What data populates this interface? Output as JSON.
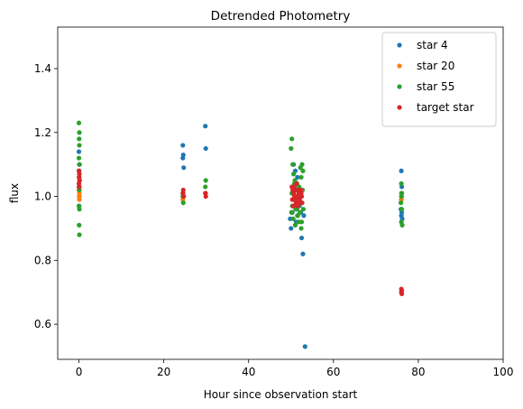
{
  "chart_data": {
    "type": "scatter",
    "title": "Detrended Photometry",
    "xlabel": "Hour since observation start",
    "ylabel": "flux",
    "xlim": [
      -5,
      100
    ],
    "ylim": [
      0.49,
      1.53
    ],
    "xticks": [
      0,
      20,
      40,
      60,
      80,
      100
    ],
    "yticks": [
      0.6,
      0.8,
      1.0,
      1.2,
      1.4
    ],
    "grid": false,
    "legend_position": "top-right",
    "series": [
      {
        "name": "star 4",
        "color": "#1f77b4",
        "points": [
          [
            0,
            1.14
          ],
          [
            0.1,
            1.1
          ],
          [
            0.05,
            1.08
          ],
          [
            0.15,
            1.05
          ],
          [
            0,
            1.03
          ],
          [
            0.1,
            1.0
          ],
          [
            0.05,
            0.97
          ],
          [
            24.5,
            1.16
          ],
          [
            24.6,
            1.13
          ],
          [
            24.5,
            1.12
          ],
          [
            24.7,
            1.09
          ],
          [
            29.8,
            1.22
          ],
          [
            29.9,
            1.15
          ],
          [
            49.8,
            0.93
          ],
          [
            50.0,
            0.9
          ],
          [
            50.3,
            0.95
          ],
          [
            51.0,
            1.08
          ],
          [
            51.5,
            1.06
          ],
          [
            51.8,
            1.03
          ],
          [
            52.0,
            0.97
          ],
          [
            52.3,
            0.95
          ],
          [
            52.5,
            0.87
          ],
          [
            52.8,
            0.82
          ],
          [
            53.0,
            0.94
          ],
          [
            50.6,
            1.1
          ],
          [
            51.2,
            0.92
          ],
          [
            53.3,
            0.53
          ],
          [
            76.0,
            1.08
          ],
          [
            76.1,
            1.03
          ],
          [
            76.0,
            0.99
          ],
          [
            75.9,
            0.96
          ],
          [
            76.1,
            0.95
          ],
          [
            76.0,
            0.94
          ],
          [
            76.2,
            0.93
          ]
        ]
      },
      {
        "name": "star 20",
        "color": "#ff7f0e",
        "points": [
          [
            0,
            1.02
          ],
          [
            0.1,
            1.01
          ],
          [
            0.05,
            1.0
          ],
          [
            0.1,
            0.99
          ],
          [
            24.6,
            1.01
          ],
          [
            24.5,
            0.99
          ],
          [
            29.9,
            1.01
          ],
          [
            50.5,
            1.01
          ],
          [
            51.0,
            1.0
          ],
          [
            51.5,
            0.99
          ],
          [
            52.0,
            1.02
          ],
          [
            76.0,
            1.01
          ],
          [
            76.1,
            1.0
          ],
          [
            76.0,
            0.99
          ]
        ]
      },
      {
        "name": "star 55",
        "color": "#2ca02c",
        "points": [
          [
            0,
            1.23
          ],
          [
            0.1,
            1.2
          ],
          [
            0.05,
            1.18
          ],
          [
            0.1,
            1.16
          ],
          [
            0,
            1.12
          ],
          [
            0.15,
            1.1
          ],
          [
            0.05,
            1.06
          ],
          [
            0.1,
            1.02
          ],
          [
            0,
            0.97
          ],
          [
            0.1,
            0.96
          ],
          [
            0.05,
            0.91
          ],
          [
            0.1,
            0.88
          ],
          [
            24.5,
            1.0
          ],
          [
            24.6,
            0.98
          ],
          [
            29.9,
            1.05
          ],
          [
            29.8,
            1.03
          ],
          [
            50.0,
            1.15
          ],
          [
            50.2,
            1.18
          ],
          [
            50.4,
            1.1
          ],
          [
            50.6,
            1.07
          ],
          [
            50.8,
            1.04
          ],
          [
            51.0,
            1.02
          ],
          [
            51.2,
            0.98
          ],
          [
            51.4,
            0.96
          ],
          [
            51.6,
            0.94
          ],
          [
            51.8,
            0.92
          ],
          [
            52.0,
            0.99
          ],
          [
            52.2,
            1.09
          ],
          [
            52.4,
            1.06
          ],
          [
            52.6,
            1.1
          ],
          [
            52.8,
            1.08
          ],
          [
            50.1,
            0.95
          ],
          [
            50.3,
            0.97
          ],
          [
            50.5,
            0.93
          ],
          [
            50.7,
            0.99
          ],
          [
            50.9,
            1.05
          ],
          [
            51.1,
            0.96
          ],
          [
            51.3,
            1.0
          ],
          [
            51.5,
            0.94
          ],
          [
            51.7,
            0.97
          ],
          [
            51.9,
            1.03
          ],
          [
            52.1,
            0.95
          ],
          [
            52.3,
            0.98
          ],
          [
            52.5,
            0.92
          ],
          [
            52.7,
            1.02
          ],
          [
            52.9,
            0.96
          ],
          [
            50.2,
            1.01
          ],
          [
            51.4,
            1.04
          ],
          [
            52.4,
            0.9
          ],
          [
            51.0,
            0.91
          ],
          [
            76.0,
            1.04
          ],
          [
            76.1,
            1.01
          ],
          [
            76.0,
            1.0
          ],
          [
            75.9,
            0.98
          ],
          [
            76.1,
            0.96
          ],
          [
            76.0,
            0.92
          ],
          [
            76.2,
            0.91
          ]
        ]
      },
      {
        "name": "target star",
        "color": "#d62728",
        "points": [
          [
            0,
            1.08
          ],
          [
            0.1,
            1.07
          ],
          [
            0.05,
            1.06
          ],
          [
            0.15,
            1.05
          ],
          [
            0,
            1.04
          ],
          [
            0.1,
            1.03
          ],
          [
            24.6,
            1.02
          ],
          [
            24.5,
            1.01
          ],
          [
            24.7,
            1.0
          ],
          [
            29.8,
            1.01
          ],
          [
            29.9,
            1.0
          ],
          [
            50.2,
            1.03
          ],
          [
            50.4,
            1.02
          ],
          [
            50.6,
            1.01
          ],
          [
            50.8,
            1.0
          ],
          [
            51.0,
            0.99
          ],
          [
            51.2,
            0.98
          ],
          [
            51.4,
            1.0
          ],
          [
            51.6,
            1.02
          ],
          [
            51.8,
            1.01
          ],
          [
            52.0,
            0.99
          ],
          [
            52.2,
            1.0
          ],
          [
            52.4,
            1.01
          ],
          [
            52.6,
            0.98
          ],
          [
            50.3,
            0.99
          ],
          [
            50.7,
            1.03
          ],
          [
            51.1,
            1.02
          ],
          [
            51.5,
            0.97
          ],
          [
            51.9,
            0.98
          ],
          [
            52.3,
            1.02
          ],
          [
            52.5,
            1.0
          ],
          [
            50.5,
            0.97
          ],
          [
            51.3,
            1.04
          ],
          [
            76.0,
            0.71
          ],
          [
            76.1,
            0.705
          ],
          [
            76.0,
            0.7
          ],
          [
            76.1,
            0.695
          ]
        ]
      }
    ]
  }
}
